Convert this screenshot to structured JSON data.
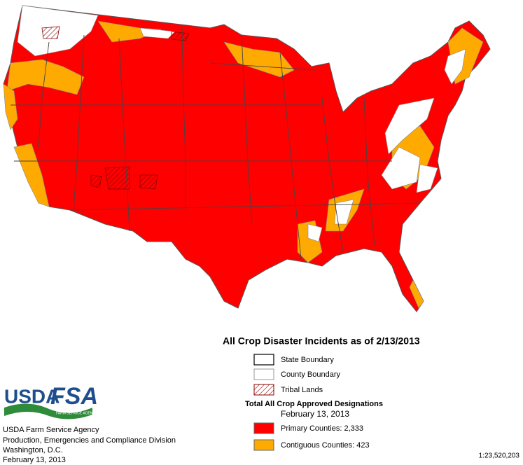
{
  "title": "All Crop Disaster Incidents as of 2/13/2013",
  "legend": {
    "boundaries": [
      "State Boundary",
      "County Boundary",
      "Tribal  Lands"
    ],
    "designations_title": "Total All Crop Approved Designations",
    "designations_date": "February 13, 2013",
    "designations": [
      {
        "label": "Primary Counties: 2,333",
        "color": "#ff0000"
      },
      {
        "label": "Contiguous Counties: 423",
        "color": "#ffaa00"
      }
    ]
  },
  "logo": {
    "usda": "USDA",
    "fsa": "FSA",
    "tagline": "FARM SERVICE AGENCY"
  },
  "agency": [
    "USDA Farm Service Agency",
    "Production, Emergencies and Compliance Division",
    "Washington, D.C.",
    "February 13, 2013"
  ],
  "scale": "1:23,520,203"
}
